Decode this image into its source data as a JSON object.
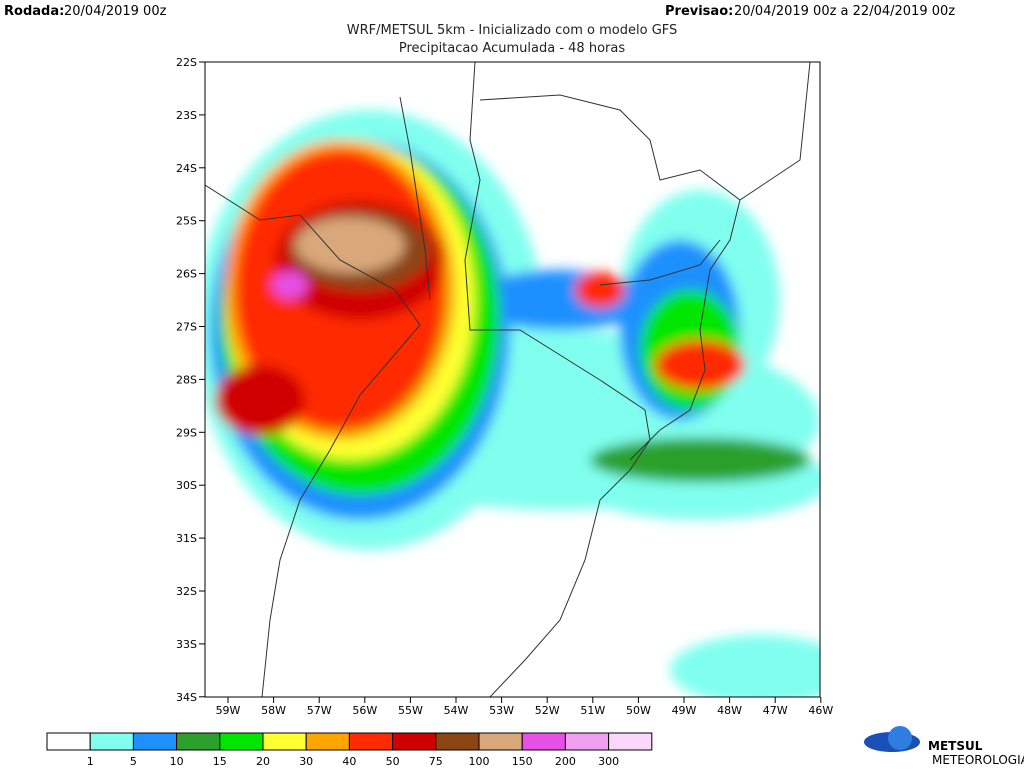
{
  "header": {
    "run_label": "Rodada:",
    "run": "20/04/2019 00z",
    "forecast_label": "Previsao:",
    "forecast": "20/04/2019 00z a 22/04/2019 00z",
    "title": "WRF/METSUL 5km - Inicializado com o modelo GFS",
    "subtitle": "Precipitacao Acumulada - 48 horas"
  },
  "map": {
    "lat_labels": [
      "22S",
      "23S",
      "24S",
      "25S",
      "26S",
      "27S",
      "28S",
      "29S",
      "30S",
      "31S",
      "32S",
      "33S",
      "34S"
    ],
    "lon_labels": [
      "59W",
      "58W",
      "57W",
      "56W",
      "55W",
      "54W",
      "53W",
      "52W",
      "51W",
      "50W",
      "49W",
      "48W",
      "47W",
      "46W"
    ]
  },
  "colorbar": {
    "levels": [
      1,
      5,
      10,
      15,
      20,
      30,
      40,
      50,
      75,
      100,
      150,
      200,
      300
    ],
    "colors": [
      "#ffffff",
      "#80ffef",
      "#1e90ff",
      "#2ca02c",
      "#00e600",
      "#ffff33",
      "#ffa500",
      "#ff2a00",
      "#d00000",
      "#8b4513",
      "#d9a87a",
      "#e650e6",
      "#f0a0f0",
      "#fbd8fb"
    ]
  },
  "logo": {
    "name": "METSUL",
    "tagline": "METEOROLOGIA"
  }
}
